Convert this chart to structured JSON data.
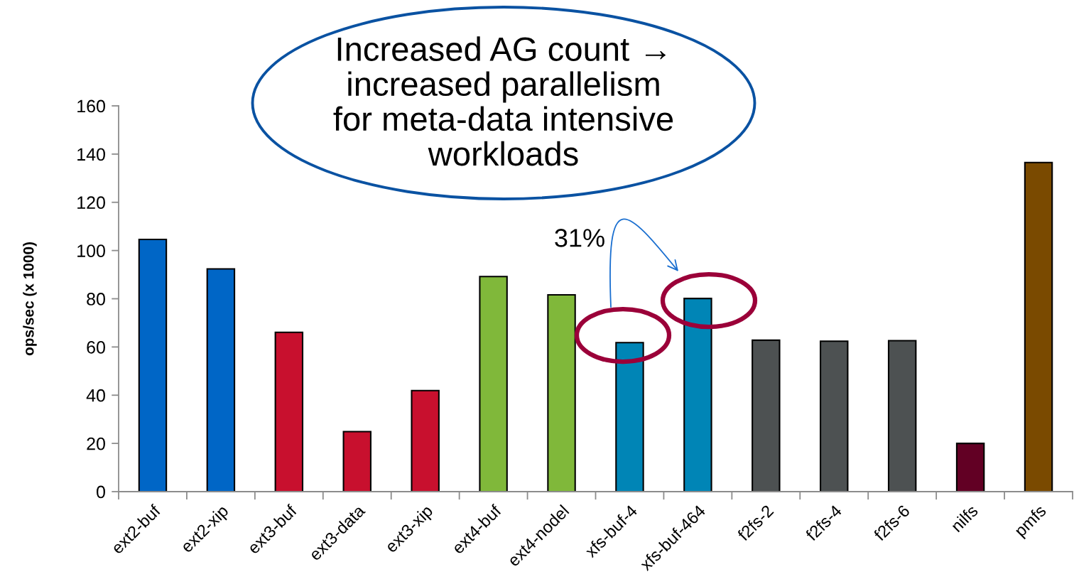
{
  "chart_data": {
    "type": "bar",
    "ylabel": "ops/sec (x 1000)",
    "categories": [
      "ext2-buf",
      "ext2-xip",
      "ext3-buf",
      "ext3-data",
      "ext3-xip",
      "ext4-buf",
      "ext4-nodel",
      "xfs-buf-4",
      "xfs-buf-464",
      "f2fs-2",
      "f2fs-4",
      "f2fs-6",
      "nilfs",
      "pmfs"
    ],
    "values": [
      104.6,
      92.4,
      66.1,
      24.9,
      41.9,
      89.2,
      81.6,
      61.8,
      80.1,
      62.8,
      62.4,
      62.6,
      20.0,
      136.5
    ],
    "colors": [
      "#0066c6",
      "#0066c6",
      "#c8102e",
      "#c8102e",
      "#c8102e",
      "#80b83a",
      "#80b83a",
      "#0085b6",
      "#0085b6",
      "#4d5152",
      "#4d5152",
      "#4d5152",
      "#620024",
      "#7a4a00"
    ],
    "ylim": [
      0,
      160
    ],
    "yticks": [
      0,
      20,
      40,
      60,
      80,
      100,
      120,
      140,
      160
    ],
    "annotations": [
      "Increased AG count →\nincreased parallelism\nfor meta-data intensive\nworkloads",
      "31%"
    ]
  }
}
